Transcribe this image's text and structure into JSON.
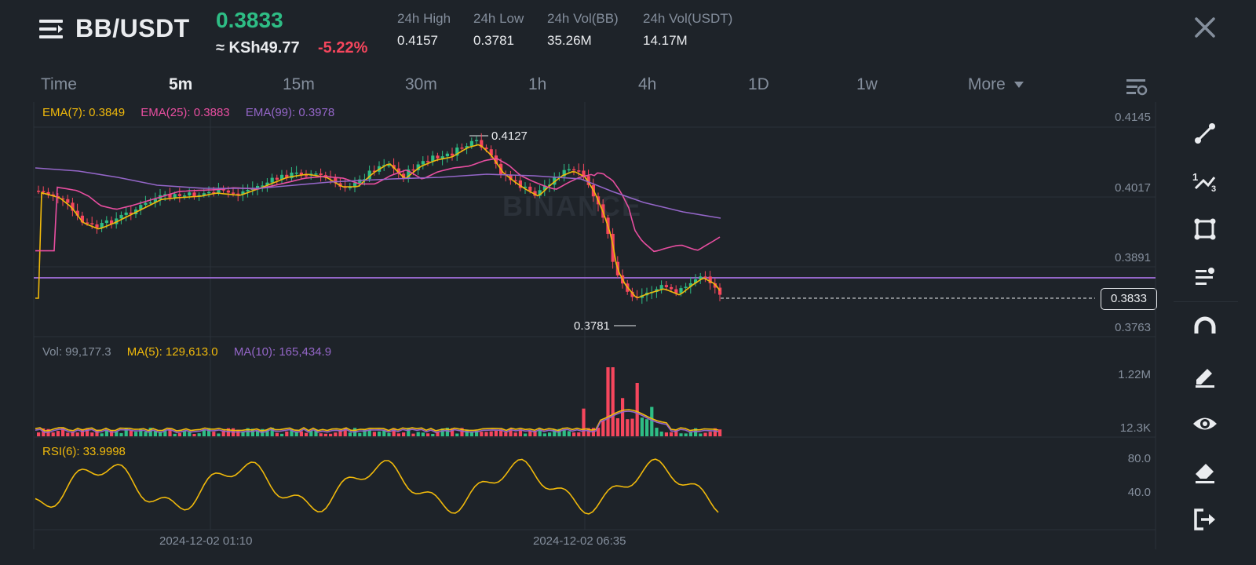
{
  "header": {
    "pair": "BB/USDT",
    "price": "0.3833",
    "fiat_price": "≈ KSh49.77",
    "change": "-5.22%",
    "stats": [
      {
        "label": "24h High",
        "value": "0.4157"
      },
      {
        "label": "24h Low",
        "value": "0.3781"
      },
      {
        "label": "24h Vol(BB)",
        "value": "35.26M"
      },
      {
        "label": "24h Vol(USDT)",
        "value": "14.17M"
      }
    ]
  },
  "tabs": [
    "Time",
    "5m",
    "15m",
    "30m",
    "1h",
    "4h",
    "1D",
    "1w",
    "More"
  ],
  "active_tab": "5m",
  "indicators": {
    "ema7": "EMA(7): 0.3849",
    "ema25": "EMA(25): 0.3883",
    "ema99": "EMA(99): 0.3978",
    "vol": "Vol: 99,177.3",
    "ma5": "MA(5): 129,613.0",
    "ma10": "MA(10): 165,434.9",
    "rsi": "RSI(6): 33.9998"
  },
  "price_axis": [
    "0.4145",
    "0.4017",
    "0.3891",
    "0.3763"
  ],
  "current_price_tag": "0.3833",
  "high_marker": "0.4127",
  "low_marker": "0.3781",
  "volume_axis": [
    "1.22M",
    "12.3K"
  ],
  "rsi_axis": [
    "80.0",
    "40.0"
  ],
  "time_axis": [
    "2024-12-02 01:10",
    "2024-12-02 06:35"
  ],
  "watermark": "BINANCE",
  "colors": {
    "up": "#2ebd85",
    "down": "#f6465d",
    "ema7": "#f0b90b",
    "ema25": "#e84ea0",
    "ema99": "#9466c8",
    "bg": "#1e2329"
  },
  "toolbar": [
    "trend-line-tool",
    "multi-line-tool",
    "rectangle-tool",
    "fib-tool",
    "magnet-tool",
    "pencil-tool",
    "visibility-tool",
    "eraser-tool",
    "exit-tool"
  ]
}
